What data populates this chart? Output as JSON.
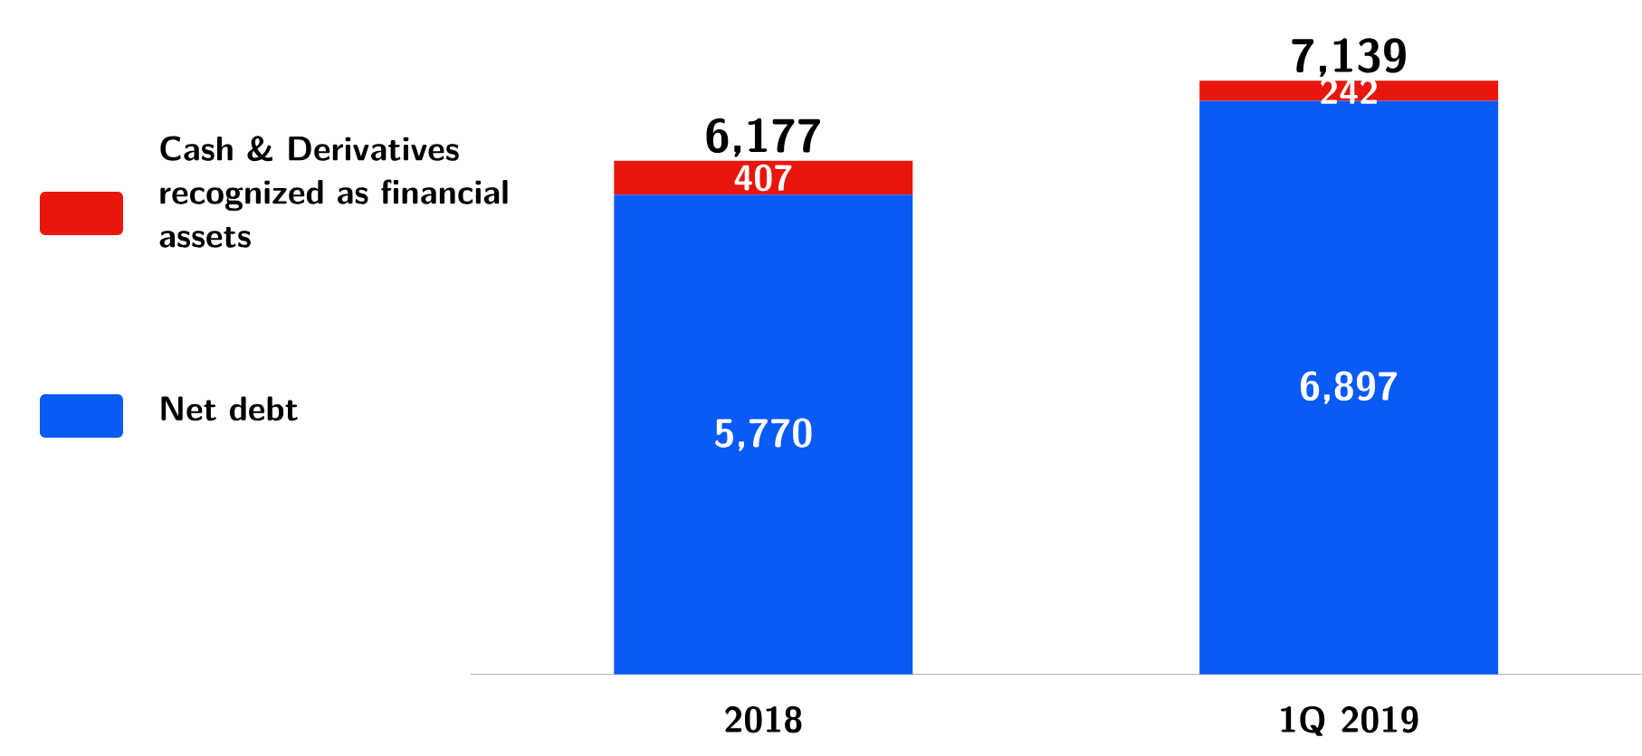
{
  "chart_data": {
    "type": "bar",
    "stacked": true,
    "categories": [
      "2018",
      "1Q 2019"
    ],
    "series": [
      {
        "name": "Net debt",
        "color": "#0a5af5",
        "values": [
          5770,
          6897
        ],
        "value_labels": [
          "5,770",
          "6,897"
        ]
      },
      {
        "name": "Cash & Derivatives recognized as financial assets",
        "color": "#e8160c",
        "values": [
          407,
          242
        ],
        "value_labels": [
          "407",
          "242"
        ]
      }
    ],
    "totals": [
      "6,177",
      "7,139"
    ],
    "legend": "left"
  }
}
